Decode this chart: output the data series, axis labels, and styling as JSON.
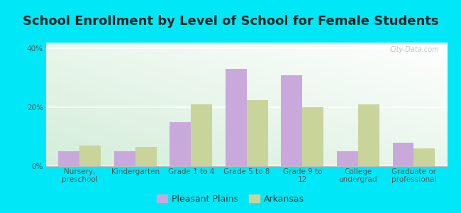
{
  "title": "School Enrollment by Level of School for Female Students",
  "categories": [
    "Nursery,\npreschool",
    "Kindergarten",
    "Grade 1 to 4",
    "Grade 5 to 8",
    "Grade 9 to\n12",
    "College\nundergrad",
    "Graduate or\nprofessional"
  ],
  "pleasant_plains": [
    5.0,
    5.0,
    15.0,
    33.0,
    31.0,
    5.0,
    8.0
  ],
  "arkansas": [
    7.0,
    6.5,
    21.0,
    22.5,
    20.0,
    21.0,
    6.0
  ],
  "color_pleasant": "#c9a8dc",
  "color_arkansas": "#c8d49a",
  "background_fig": "#00e8f8",
  "ylim": [
    0,
    42
  ],
  "yticks": [
    0,
    20,
    40
  ],
  "ytick_labels": [
    "0%",
    "20%",
    "40%"
  ],
  "legend_labels": [
    "Pleasant Plains",
    "Arkansas"
  ],
  "bar_width": 0.38,
  "title_fontsize": 13,
  "tick_fontsize": 7.5,
  "legend_fontsize": 9
}
